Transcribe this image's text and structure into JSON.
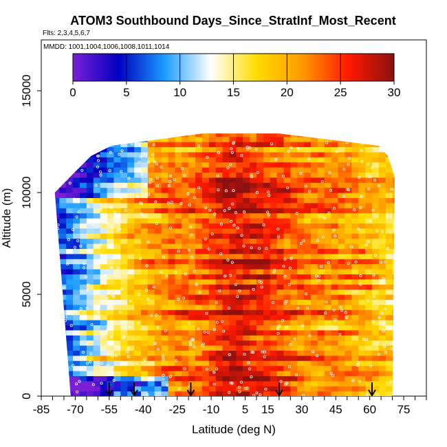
{
  "chart_data": {
    "type": "heatmap",
    "title": "ATOM3 Southbound Days_Since_StratInf_Most_Recent",
    "flights_label": "Flts: 2,3,4,5,6,7",
    "dates_label": "MMDD: 1001,1004,1006,1008,1011,1014",
    "xlabel": "Latitude (deg N)",
    "ylabel": "Altitude (m)",
    "xlim": [
      -85,
      85
    ],
    "ylim": [
      0,
      17500
    ],
    "x_ticks": [
      -85,
      -70,
      -55,
      -40,
      -25,
      -10,
      5,
      15,
      30,
      45,
      60,
      75
    ],
    "y_ticks": [
      0,
      5000,
      10000,
      15000
    ],
    "colorbar": {
      "min": 0,
      "max": 30,
      "ticks": [
        0,
        5,
        10,
        15,
        20,
        25,
        30
      ],
      "colors": [
        "#7a1fd6",
        "#0000c0",
        "#1a9cff",
        "#ffffff",
        "#ffdd00",
        "#ff9900",
        "#ff1a00",
        "#8b1010"
      ]
    },
    "coverage": [
      {
        "alt": 0,
        "lat_min": -72,
        "lat_max": 70
      },
      {
        "alt": 10000,
        "lat_min": -79,
        "lat_max": 71
      },
      {
        "alt": 10800,
        "lat_min": -72,
        "lat_max": 71
      },
      {
        "alt": 11800,
        "lat_min": -63,
        "lat_max": 68
      },
      {
        "alt": 12300,
        "lat_min": -54,
        "lat_max": 64
      },
      {
        "alt": 12900,
        "lat_min": -14,
        "lat_max": 20
      }
    ],
    "latitude_bands": [
      {
        "lat": -85,
        "value": 4
      },
      {
        "lat": -70,
        "value": 9
      },
      {
        "lat": -60,
        "value": 14
      },
      {
        "lat": -50,
        "value": 17
      },
      {
        "lat": -40,
        "value": 20
      },
      {
        "lat": -30,
        "value": 22
      },
      {
        "lat": -20,
        "value": 22
      },
      {
        "lat": -10,
        "value": 25
      },
      {
        "lat": 0,
        "value": 27
      },
      {
        "lat": 10,
        "value": 26
      },
      {
        "lat": 20,
        "value": 24
      },
      {
        "lat": 30,
        "value": 22
      },
      {
        "lat": 45,
        "value": 22
      },
      {
        "lat": 60,
        "value": 19
      },
      {
        "lat": 75,
        "value": 17
      }
    ],
    "profile_markers_lat": [
      -55,
      -44,
      -19,
      20,
      61
    ]
  }
}
